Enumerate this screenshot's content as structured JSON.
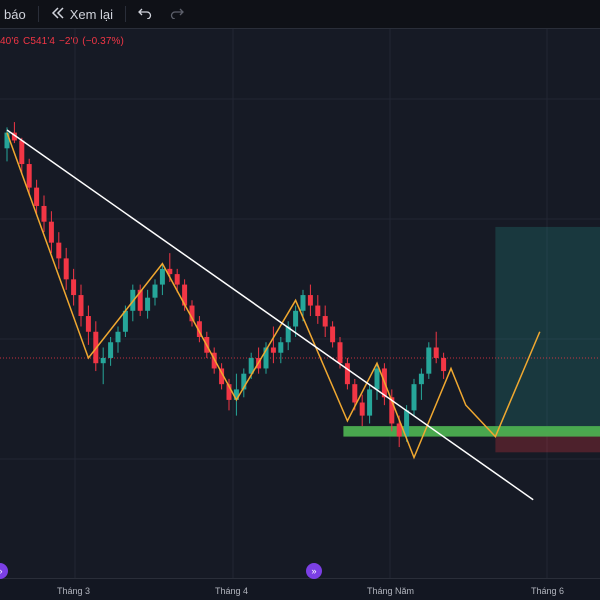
{
  "toolbar": {
    "alert_label": "báo",
    "replay_label": "Xem lại",
    "replay_icon": "double-left-arrow-icon",
    "undo_icon": "undo-icon",
    "redo_icon": "redo-icon"
  },
  "ohlc": {
    "low": "40'6",
    "close_prefix": "C",
    "close": "541'4",
    "change": "−2'0",
    "change_pct": "(−0.37%)"
  },
  "colors": {
    "up": "#26a69a",
    "down": "#f23645",
    "trendline": "#ffffff",
    "zigzag": "#f0a830",
    "support_zone": "#4caf50",
    "target_zone": "#26a69a",
    "stop_zone": "#f23645",
    "price_line": "#f23645",
    "background": "#161a25"
  },
  "x_axis": {
    "labels": [
      "Tháng 3",
      "Tháng 4",
      "Tháng Năm",
      "Tháng 6"
    ]
  },
  "event_markers": [
    "event-marker-icon",
    "replay-marker-icon"
  ],
  "chart_data": {
    "type": "candlestick",
    "candles": [
      {
        "o": 110,
        "h": 118,
        "l": 105,
        "c": 116
      },
      {
        "o": 116,
        "h": 120,
        "l": 112,
        "c": 113
      },
      {
        "o": 113,
        "h": 114,
        "l": 100,
        "c": 104
      },
      {
        "o": 104,
        "h": 106,
        "l": 92,
        "c": 95
      },
      {
        "o": 95,
        "h": 98,
        "l": 85,
        "c": 88
      },
      {
        "o": 88,
        "h": 92,
        "l": 78,
        "c": 82
      },
      {
        "o": 82,
        "h": 86,
        "l": 70,
        "c": 74
      },
      {
        "o": 74,
        "h": 78,
        "l": 64,
        "c": 68
      },
      {
        "o": 68,
        "h": 72,
        "l": 56,
        "c": 60
      },
      {
        "o": 60,
        "h": 64,
        "l": 50,
        "c": 54
      },
      {
        "o": 54,
        "h": 58,
        "l": 42,
        "c": 46
      },
      {
        "o": 46,
        "h": 50,
        "l": 35,
        "c": 40
      },
      {
        "o": 40,
        "h": 44,
        "l": 25,
        "c": 28
      },
      {
        "o": 28,
        "h": 34,
        "l": 20,
        "c": 30
      },
      {
        "o": 30,
        "h": 38,
        "l": 27,
        "c": 36
      },
      {
        "o": 36,
        "h": 42,
        "l": 32,
        "c": 40
      },
      {
        "o": 40,
        "h": 50,
        "l": 38,
        "c": 48
      },
      {
        "o": 48,
        "h": 58,
        "l": 44,
        "c": 56
      },
      {
        "o": 56,
        "h": 58,
        "l": 46,
        "c": 48
      },
      {
        "o": 48,
        "h": 56,
        "l": 45,
        "c": 53
      },
      {
        "o": 53,
        "h": 60,
        "l": 50,
        "c": 58
      },
      {
        "o": 58,
        "h": 66,
        "l": 54,
        "c": 64
      },
      {
        "o": 64,
        "h": 70,
        "l": 59,
        "c": 62
      },
      {
        "o": 62,
        "h": 64,
        "l": 55,
        "c": 58
      },
      {
        "o": 58,
        "h": 60,
        "l": 48,
        "c": 50
      },
      {
        "o": 50,
        "h": 52,
        "l": 42,
        "c": 44
      },
      {
        "o": 44,
        "h": 46,
        "l": 36,
        "c": 38
      },
      {
        "o": 38,
        "h": 40,
        "l": 30,
        "c": 32
      },
      {
        "o": 32,
        "h": 34,
        "l": 24,
        "c": 26
      },
      {
        "o": 26,
        "h": 28,
        "l": 18,
        "c": 20
      },
      {
        "o": 20,
        "h": 22,
        "l": 10,
        "c": 14
      },
      {
        "o": 14,
        "h": 24,
        "l": 8,
        "c": 18
      },
      {
        "o": 18,
        "h": 26,
        "l": 15,
        "c": 24
      },
      {
        "o": 24,
        "h": 32,
        "l": 22,
        "c": 30
      },
      {
        "o": 30,
        "h": 34,
        "l": 24,
        "c": 26
      },
      {
        "o": 26,
        "h": 36,
        "l": 24,
        "c": 34
      },
      {
        "o": 34,
        "h": 42,
        "l": 28,
        "c": 32
      },
      {
        "o": 32,
        "h": 38,
        "l": 28,
        "c": 36
      },
      {
        "o": 36,
        "h": 44,
        "l": 33,
        "c": 42
      },
      {
        "o": 42,
        "h": 50,
        "l": 38,
        "c": 48
      },
      {
        "o": 48,
        "h": 56,
        "l": 44,
        "c": 54
      },
      {
        "o": 54,
        "h": 58,
        "l": 46,
        "c": 50
      },
      {
        "o": 50,
        "h": 54,
        "l": 43,
        "c": 46
      },
      {
        "o": 46,
        "h": 50,
        "l": 38,
        "c": 42
      },
      {
        "o": 42,
        "h": 44,
        "l": 34,
        "c": 36
      },
      {
        "o": 36,
        "h": 38,
        "l": 26,
        "c": 28
      },
      {
        "o": 28,
        "h": 30,
        "l": 18,
        "c": 20
      },
      {
        "o": 20,
        "h": 22,
        "l": 10,
        "c": 13
      },
      {
        "o": 13,
        "h": 16,
        "l": 4,
        "c": 8
      },
      {
        "o": 8,
        "h": 20,
        "l": 5,
        "c": 18
      },
      {
        "o": 18,
        "h": 28,
        "l": 14,
        "c": 26
      },
      {
        "o": 26,
        "h": 28,
        "l": 12,
        "c": 15
      },
      {
        "o": 15,
        "h": 18,
        "l": 2,
        "c": 5
      },
      {
        "o": 5,
        "h": 8,
        "l": -4,
        "c": 0
      },
      {
        "o": 0,
        "h": 12,
        "l": -2,
        "c": 10
      },
      {
        "o": 10,
        "h": 22,
        "l": 8,
        "c": 20
      },
      {
        "o": 20,
        "h": 26,
        "l": 14,
        "c": 24
      },
      {
        "o": 24,
        "h": 36,
        "l": 22,
        "c": 34
      },
      {
        "o": 34,
        "h": 40,
        "l": 28,
        "c": 30
      },
      {
        "o": 30,
        "h": 32,
        "l": 22,
        "c": 25
      }
    ],
    "trendline": {
      "from": {
        "i": 0,
        "v": 117
      },
      "to": {
        "i": 63,
        "v": -8
      }
    },
    "zigzag": [
      {
        "i": 0,
        "v": 116
      },
      {
        "i": 11,
        "v": 30
      },
      {
        "i": 21,
        "v": 66
      },
      {
        "i": 31,
        "v": 14
      },
      {
        "i": 39,
        "v": 52
      },
      {
        "i": 46,
        "v": 6
      },
      {
        "i": 50,
        "v": 28
      },
      {
        "i": 55,
        "v": -8
      },
      {
        "i": 60,
        "v": 26
      },
      {
        "i": 62,
        "v": 12
      },
      {
        "i": 66,
        "v": 0
      },
      {
        "i": 72,
        "v": 40
      }
    ],
    "support_zone": {
      "i_from": 46,
      "i_to": 74,
      "v_from": 0,
      "v_to": 4
    },
    "target_zone": {
      "i_from": 66,
      "i_to": 74,
      "v_from": 2,
      "v_to": 80
    },
    "stop_zone": {
      "i_from": 66,
      "i_to": 74,
      "v_from": -6,
      "v_to": 2
    },
    "price_line": 30,
    "value_range": [
      -20,
      125
    ]
  }
}
